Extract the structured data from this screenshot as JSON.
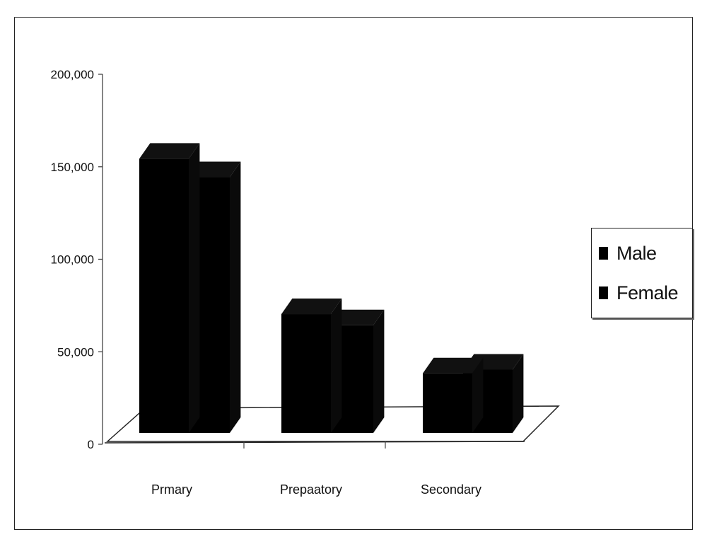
{
  "chart_data": {
    "type": "bar",
    "title": "",
    "xlabel": "",
    "ylabel": "",
    "categories": [
      "Prmary",
      "Prepaatory",
      "Secondary"
    ],
    "series": [
      {
        "name": "Male",
        "values": [
          162000,
          78000,
          46000
        ]
      },
      {
        "name": "Female",
        "values": [
          152000,
          72000,
          48000
        ]
      }
    ],
    "ylim": [
      0,
      200000
    ],
    "yticks": [
      0,
      50000,
      100000,
      150000,
      200000
    ],
    "ytick_labels": [
      "0",
      "50,000",
      "100,000",
      "150,000",
      "200,000"
    ],
    "grid": false,
    "three_d": true,
    "legend_position": "right",
    "colors": {
      "Male": "#000000",
      "Female": "#000000"
    }
  }
}
